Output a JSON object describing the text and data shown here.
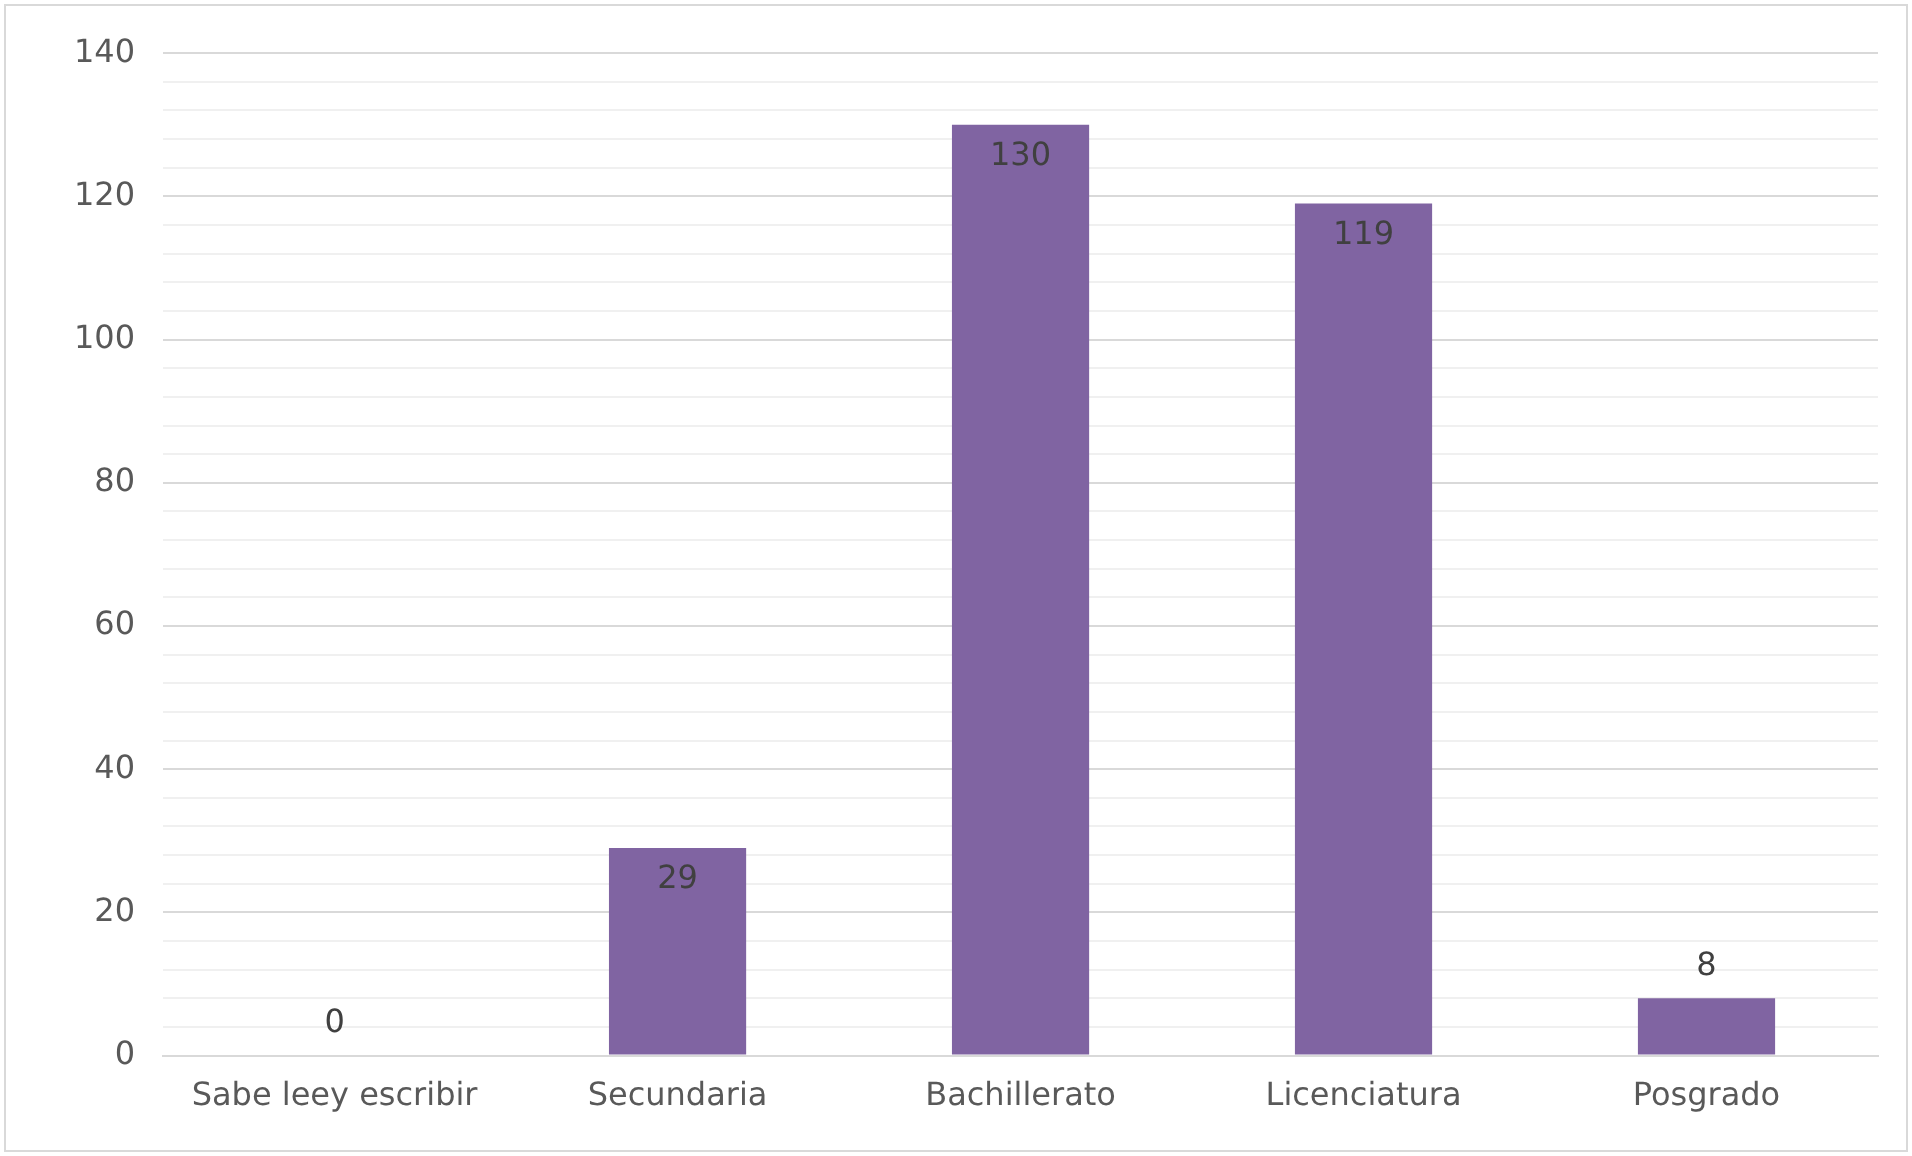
{
  "chart_data": {
    "type": "bar",
    "categories": [
      "Sabe leey escribir",
      "Secundaria",
      "Bachillerato",
      "Licenciatura",
      "Posgrado"
    ],
    "values": [
      0,
      29,
      130,
      119,
      8
    ],
    "color": "#8064a2",
    "ylim": [
      0,
      140
    ],
    "yticks": [
      0,
      {
        "value": 4,
        "label": null
      },
      {
        "value": 8,
        "label": null
      },
      {
        "value": 12,
        "label": null
      },
      {
        "value": 16,
        "label": null
      },
      20,
      {
        "value": 24,
        "label": null
      },
      {
        "value": 28,
        "label": null
      },
      {
        "value": 32,
        "label": null
      },
      {
        "value": 36,
        "label": null
      },
      40,
      {
        "value": 44,
        "label": null
      },
      {
        "value": 48,
        "label": null
      },
      {
        "value": 52,
        "label": null
      },
      {
        "value": 56,
        "label": null
      },
      60,
      {
        "value": 64,
        "label": null
      },
      {
        "value": 68,
        "label": null
      },
      {
        "value": 72,
        "label": null
      },
      {
        "value": 76,
        "label": null
      },
      80,
      {
        "value": 84,
        "label": null
      },
      {
        "value": 88,
        "label": null
      },
      {
        "value": 92,
        "label": null
      },
      {
        "value": 96,
        "label": null
      },
      100,
      {
        "value": 104,
        "label": null
      },
      {
        "value": 108,
        "label": null
      },
      {
        "value": 112,
        "label": null
      },
      {
        "value": 116,
        "label": null
      },
      120,
      {
        "value": 124,
        "label": null
      },
      {
        "value": 128,
        "label": null
      },
      {
        "value": 132,
        "label": null
      },
      {
        "value": 136,
        "label": null
      },
      140
    ],
    "grid": true,
    "data_labels": true
  }
}
